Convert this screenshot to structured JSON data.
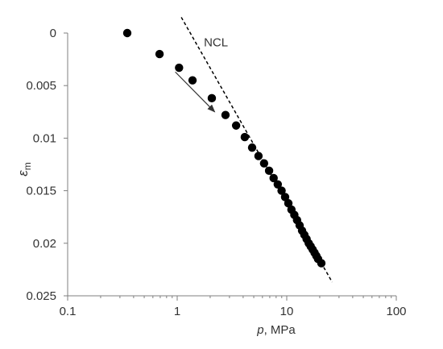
{
  "chart_data": {
    "type": "scatter",
    "title": "",
    "xlabel_var": "p",
    "xlabel_unit": ", MPa",
    "ylabel_var": "ε",
    "ylabel_sub": "m",
    "x_scale": "log",
    "xlim": [
      0.1,
      100
    ],
    "ylim": [
      0,
      0.025
    ],
    "y_inverted": true,
    "grid": false,
    "x_ticks": [
      0.1,
      1,
      10,
      100
    ],
    "x_tick_labels": [
      "0.1",
      "1",
      "10",
      "100"
    ],
    "y_ticks": [
      0,
      0.005,
      0.01,
      0.015,
      0.02,
      0.025
    ],
    "y_tick_labels": [
      "0",
      "0.005",
      "0.01",
      "0.015",
      "0.02",
      "0.025"
    ],
    "series": [
      {
        "x": [
          0.35,
          0.69,
          1.04,
          1.38,
          2.07,
          2.76,
          3.45,
          4.14,
          4.83,
          5.52,
          6.21,
          6.9,
          7.59,
          8.28,
          8.97,
          9.66,
          10.35,
          11.04,
          11.73,
          12.42,
          13.11,
          13.8,
          14.49,
          15.18,
          15.87,
          16.56,
          17.25,
          17.94,
          18.63,
          19.32,
          20.7
        ],
        "y": [
          0,
          0.002,
          0.0033,
          0.0045,
          0.0062,
          0.0078,
          0.0088,
          0.0099,
          0.0109,
          0.0117,
          0.0124,
          0.0131,
          0.0138,
          0.0144,
          0.015,
          0.0156,
          0.0162,
          0.0168,
          0.0173,
          0.0178,
          0.0183,
          0.0188,
          0.0192,
          0.0196,
          0.02,
          0.0203,
          0.0206,
          0.0209,
          0.0212,
          0.0215,
          0.0219
        ],
        "color": "#000000"
      }
    ],
    "ncl": {
      "label": "NCL",
      "x": [
        1.09,
        26.0
      ],
      "y": [
        -0.0015,
        0.0237
      ],
      "style": "dashed",
      "color": "#000000"
    },
    "arrow": {
      "from": [
        0.96,
        0.0037
      ],
      "to": [
        2.2,
        0.0075
      ],
      "color": "#333333"
    }
  }
}
